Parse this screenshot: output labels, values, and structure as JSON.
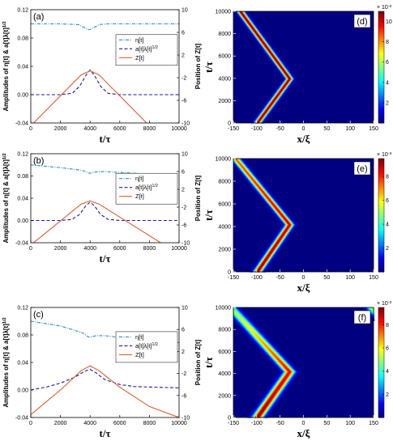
{
  "chart_data": [
    {
      "type": "line",
      "panel_label": "(a)",
      "xlabel": "t/τ",
      "ylabel": "Amplitudes of η[t] & a[t]λ[t]^1/2",
      "y2label": "Position of Z[t]",
      "xlim": [
        0,
        10000
      ],
      "ylim": [
        -0.04,
        0.12
      ],
      "y2lim": [
        -10,
        10
      ],
      "xticks": [
        "0",
        "2000",
        "4000",
        "6000",
        "8000",
        "10000"
      ],
      "yticks": [
        "-0.04",
        "0.00",
        "0.04",
        "0.08",
        "0.12"
      ],
      "y2ticks": [
        "-10",
        "-6",
        "-2",
        "2",
        "6",
        "10"
      ],
      "legend": [
        "η[t]",
        "a[t]λ[t]^1/2",
        "Z[t]"
      ],
      "series": [
        {
          "name": "η[t]",
          "color": "#2b8cbe",
          "style": "dashdot",
          "axis": "left",
          "x": [
            0,
            2000,
            3200,
            3600,
            3900,
            4000,
            4200,
            4600,
            5200,
            7000,
            10000
          ],
          "y": [
            0.1,
            0.1,
            0.099,
            0.095,
            0.092,
            0.092,
            0.094,
            0.099,
            0.1,
            0.1,
            0.1
          ]
        },
        {
          "name": "a[t]λ[t]^1/2",
          "color": "#1a1aa6",
          "style": "dashed",
          "axis": "left",
          "x": [
            0,
            2000,
            2800,
            3300,
            3700,
            4000,
            4300,
            4700,
            5200,
            6000,
            7000,
            10000
          ],
          "y": [
            0.0,
            0.0,
            0.002,
            0.012,
            0.027,
            0.035,
            0.027,
            0.012,
            0.002,
            0.0,
            0.0,
            0.0
          ]
        },
        {
          "name": "Z[t]",
          "color": "#d95f2b",
          "style": "solid",
          "axis": "right",
          "x": [
            0,
            3400,
            4000,
            4600,
            8000
          ],
          "y": [
            -10.5,
            -1.5,
            -0.8,
            -1.5,
            -10.5
          ]
        }
      ]
    },
    {
      "type": "line",
      "panel_label": "(b)",
      "xlabel": "t/τ",
      "ylabel": "Amplitudes of η[t] & a[t]λ[t]^1/2",
      "y2label": "Position of Z[t]",
      "xlim": [
        0,
        10000
      ],
      "ylim": [
        -0.04,
        0.12
      ],
      "y2lim": [
        -10,
        10
      ],
      "xticks": [
        "0",
        "2000",
        "4000",
        "6000",
        "8000",
        "10000"
      ],
      "yticks": [
        "-0.04",
        "0.00",
        "0.04",
        "0.08",
        "0.12"
      ],
      "y2ticks": [
        "-10",
        "-6",
        "-2",
        "2",
        "6",
        "10"
      ],
      "legend": [
        "η[t]",
        "a[t]λ[t]^1/2",
        "Z[t]"
      ],
      "series": [
        {
          "name": "η[t]",
          "color": "#2b8cbe",
          "style": "dashdot",
          "axis": "left",
          "x": [
            0,
            2000,
            3500,
            3900,
            4000,
            4300,
            5000,
            7000,
            10000
          ],
          "y": [
            0.1,
            0.095,
            0.09,
            0.085,
            0.085,
            0.087,
            0.088,
            0.085,
            0.08
          ]
        },
        {
          "name": "a[t]λ[t]^1/2",
          "color": "#1a1aa6",
          "style": "dashed",
          "axis": "left",
          "x": [
            0,
            2000,
            2800,
            3300,
            3700,
            4000,
            4300,
            4700,
            5200,
            6000,
            7000,
            10000
          ],
          "y": [
            0.0,
            0.0,
            0.002,
            0.011,
            0.026,
            0.033,
            0.026,
            0.011,
            0.002,
            0.0,
            0.0,
            0.0
          ]
        },
        {
          "name": "Z[t]",
          "color": "#d95f2b",
          "style": "solid",
          "axis": "right",
          "x": [
            0,
            3400,
            4000,
            4600,
            9000
          ],
          "y": [
            -10.5,
            -1.3,
            -0.6,
            -1.3,
            -10.5
          ]
        }
      ]
    },
    {
      "type": "line",
      "panel_label": "(c)",
      "xlabel": "t/τ",
      "ylabel": "Amplitudes of η[t] & a[t]λ[t]^1/2",
      "y2label": "Position of Z[t]",
      "xlim": [
        0,
        10000
      ],
      "ylim": [
        -0.04,
        0.12
      ],
      "y2lim": [
        -10,
        10
      ],
      "xticks": [
        "0",
        "2000",
        "4000",
        "6000",
        "8000",
        "10000"
      ],
      "yticks": [
        "-0.04",
        "0.00",
        "0.04",
        "0.08",
        "0.12"
      ],
      "y2ticks": [
        "-10",
        "-6",
        "-2",
        "2",
        "6",
        "10"
      ],
      "legend": [
        "η[t]",
        "a[t]λ[t]^1/2",
        "Z[t]"
      ],
      "series": [
        {
          "name": "η[t]",
          "color": "#2b8cbe",
          "style": "dashdot",
          "axis": "left",
          "x": [
            0,
            2000,
            3500,
            3900,
            4000,
            4400,
            5000,
            7000,
            10000
          ],
          "y": [
            0.1,
            0.093,
            0.083,
            0.077,
            0.077,
            0.079,
            0.079,
            0.074,
            0.069
          ]
        },
        {
          "name": "a[t]λ[t]^1/2",
          "color": "#1a1aa6",
          "style": "dashed",
          "axis": "left",
          "x": [
            0,
            1000,
            2000,
            3000,
            3600,
            4000,
            4400,
            5000,
            6000,
            7000,
            10000
          ],
          "y": [
            0.0,
            0.004,
            0.01,
            0.019,
            0.027,
            0.03,
            0.025,
            0.015,
            0.008,
            0.005,
            0.003
          ]
        },
        {
          "name": "Z[t]",
          "color": "#d95f2b",
          "style": "solid",
          "axis": "right",
          "x": [
            0,
            2000,
            3400,
            4000,
            4600,
            6000,
            8000,
            10000
          ],
          "y": [
            -9.5,
            -5.0,
            -1.5,
            -0.6,
            -1.5,
            -4.5,
            -8.0,
            -10.0
          ]
        }
      ]
    },
    {
      "type": "heatmap",
      "panel_label": "(d)",
      "xlabel": "x/ξ",
      "ylabel": "t/τ",
      "xlim": [
        -150,
        150
      ],
      "ylim": [
        0,
        10000
      ],
      "xticks": [
        "-150",
        "-100",
        "-50",
        "0",
        "50",
        "100",
        "150"
      ],
      "yticks": [
        "0",
        "2000",
        "4000",
        "6000",
        "8000",
        "10000"
      ],
      "colorbar_exponent": "× 10^-3",
      "colorbar_ticks": [
        "2",
        "4",
        "6",
        "8",
        "10"
      ],
      "clim": [
        0,
        11
      ],
      "ridge_t": [
        0,
        4000,
        10000
      ],
      "ridge_x": [
        -100,
        -30,
        -135
      ],
      "ridge_width": 5,
      "peak": [
        11,
        11,
        11
      ],
      "wrap": false
    },
    {
      "type": "heatmap",
      "panel_label": "(e)",
      "xlabel": "x/ξ",
      "ylabel": "t/τ",
      "xlim": [
        -150,
        150
      ],
      "ylim": [
        0,
        10000
      ],
      "xticks": [
        "-150",
        "-100",
        "-50",
        "0",
        "50",
        "100",
        "150"
      ],
      "yticks": [
        "0",
        "2000",
        "4000",
        "6000",
        "8000",
        "10000"
      ],
      "colorbar_exponent": "× 10^-3",
      "colorbar_ticks": [
        "2",
        "4",
        "6",
        "8"
      ],
      "clim": [
        0,
        9.5
      ],
      "ridge_t": [
        0,
        4200,
        10000
      ],
      "ridge_x": [
        -100,
        -30,
        -145
      ],
      "ridge_width": 6,
      "peak": [
        9.5,
        9,
        7.5
      ],
      "wrap": false
    },
    {
      "type": "heatmap",
      "panel_label": "(f)",
      "xlabel": "x/ξ",
      "ylabel": "t/τ",
      "xlim": [
        -150,
        150
      ],
      "ylim": [
        0,
        10000
      ],
      "xticks": [
        "-150",
        "-100",
        "-50",
        "0",
        "50",
        "100",
        "150"
      ],
      "yticks": [
        "0",
        "2000",
        "4000",
        "6000",
        "8000",
        "10000"
      ],
      "colorbar_exponent": "× 10^-3",
      "colorbar_ticks": [
        "2",
        "4",
        "6",
        "8"
      ],
      "clim": [
        0,
        9.5
      ],
      "ridge_t": [
        0,
        4200,
        10000
      ],
      "ridge_x": [
        -100,
        -30,
        -155
      ],
      "ridge_width": 8,
      "peak": [
        9.5,
        8.5,
        5
      ],
      "wrap": true
    }
  ]
}
